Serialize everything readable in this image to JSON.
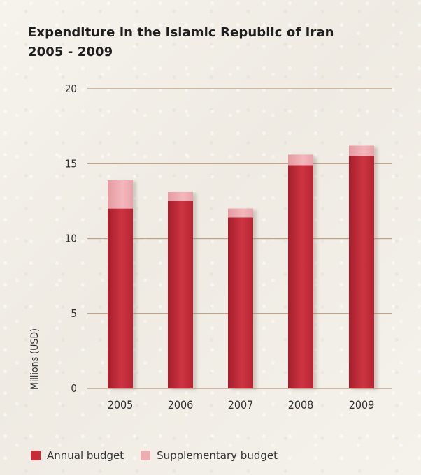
{
  "header": {
    "title_line_1": "Expenditure in the Islamic Republic of Iran",
    "title_line_2": "2005 - 2009"
  },
  "legend": {
    "annual_label": "Annual budget",
    "supplementary_label": "Supplementary budget"
  },
  "colors": {
    "annual": "#c62b37",
    "annual_dark": "#a8202c",
    "supplementary": "#eeadb3",
    "gridline": "#bfa58e",
    "axis_text": "#333333"
  },
  "chart_data": {
    "type": "bar",
    "stacked": true,
    "title": "Expenditure in the Islamic Republic of Iran 2005 - 2009",
    "ylabel": "Millions (USD)",
    "xlabel": "",
    "categories": [
      "2005",
      "2006",
      "2007",
      "2008",
      "2009"
    ],
    "ylim": [
      0,
      20
    ],
    "yticks": [
      0,
      5,
      10,
      15,
      20
    ],
    "grid": true,
    "legend_position": "bottom-left",
    "series": [
      {
        "name": "Annual budget",
        "values": [
          12.0,
          12.5,
          11.4,
          14.9,
          15.5
        ]
      },
      {
        "name": "Supplementary budget",
        "values": [
          1.9,
          0.6,
          0.6,
          0.7,
          0.7
        ]
      }
    ]
  }
}
